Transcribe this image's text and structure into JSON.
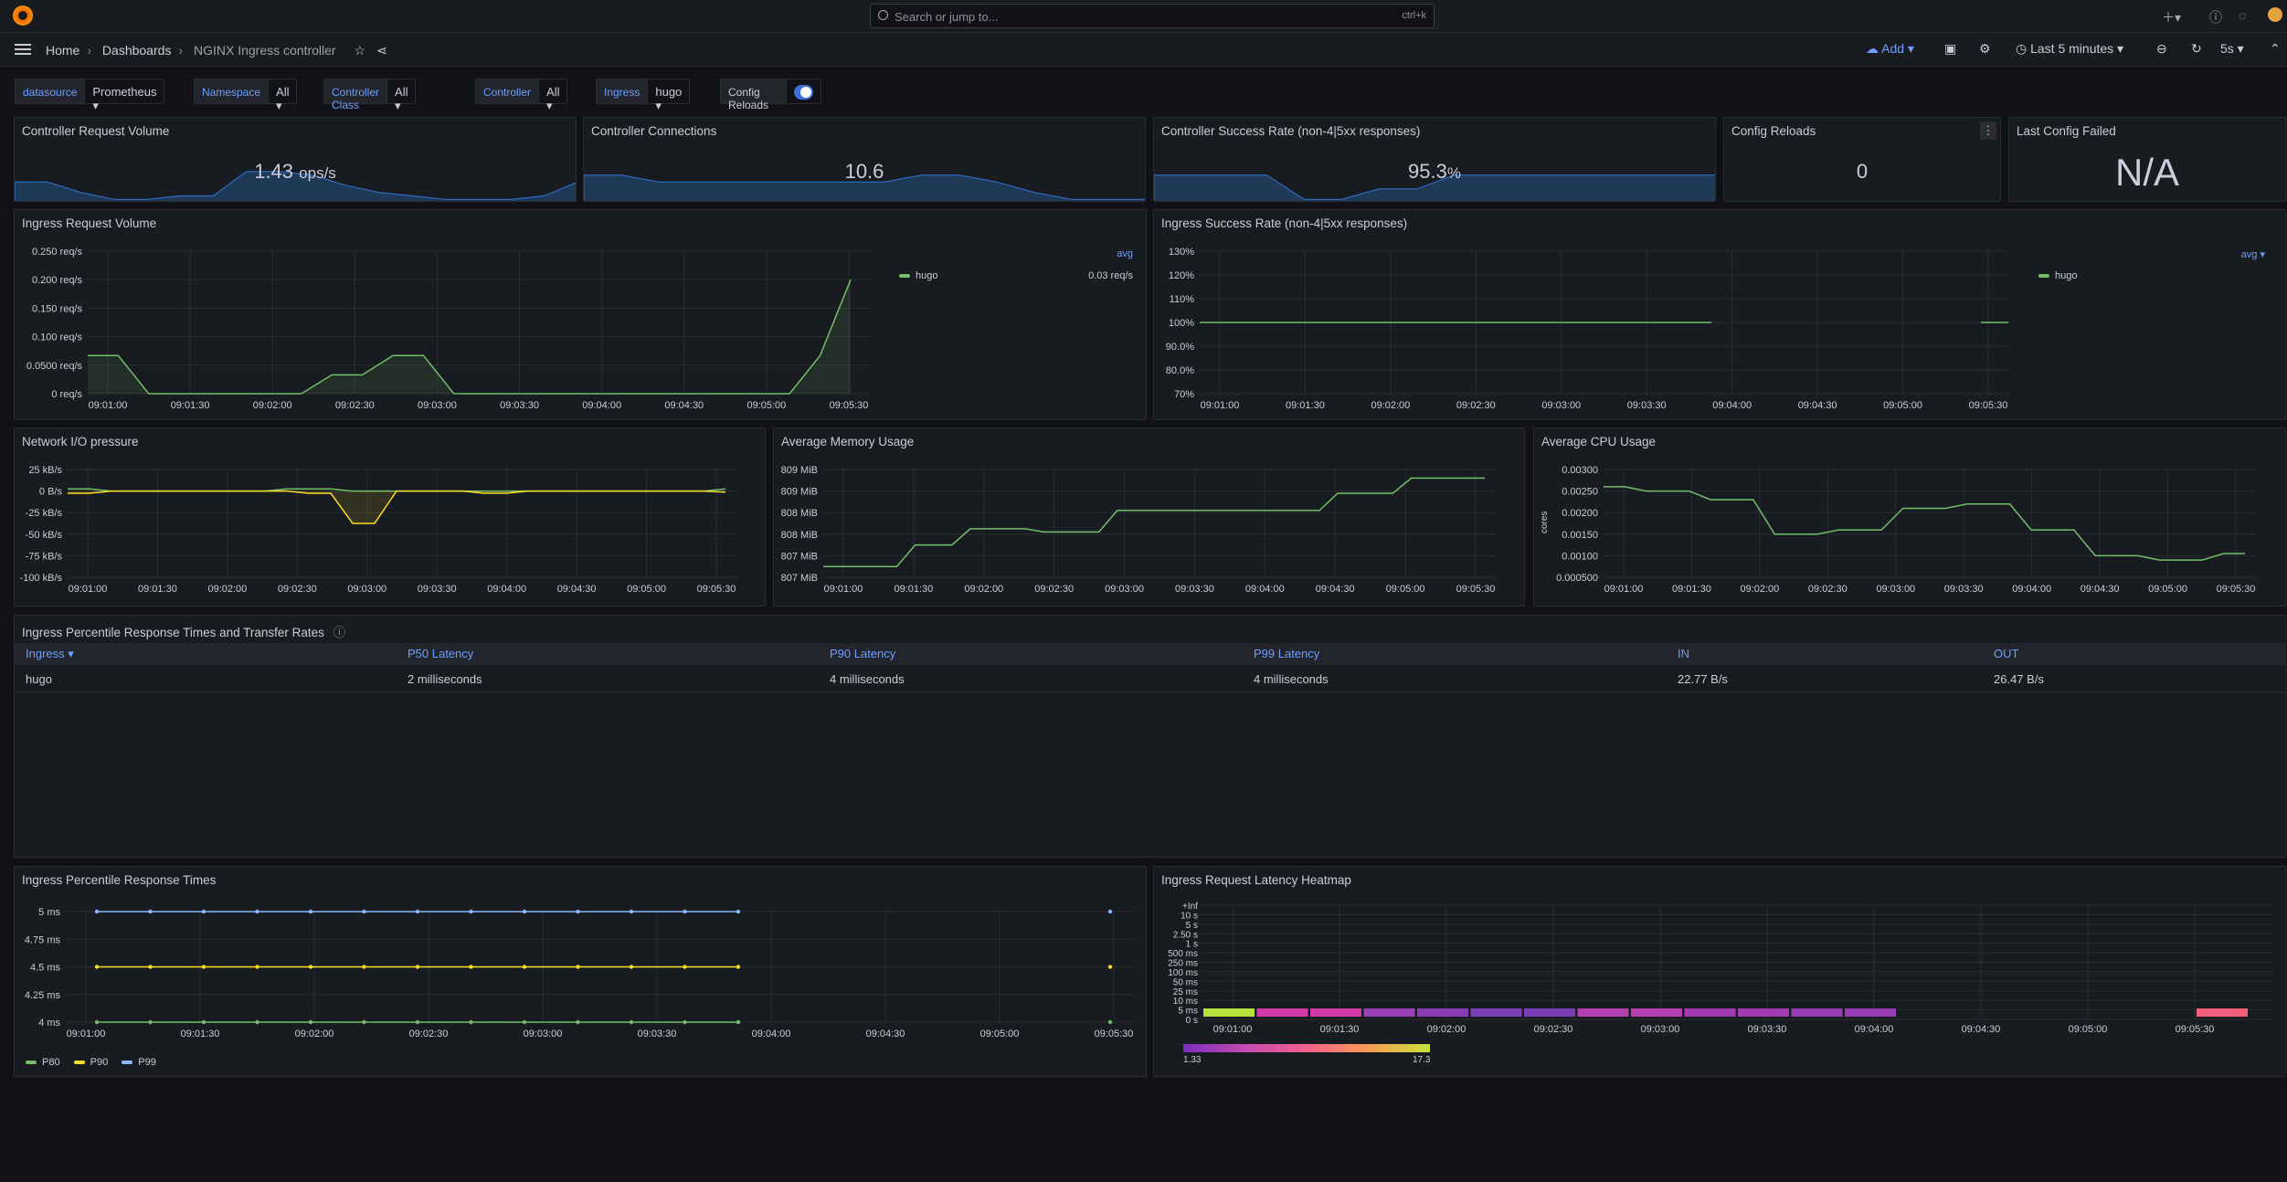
{
  "topbar": {
    "search_placeholder": "Search or jump to...",
    "search_kbd": "ctrl+k"
  },
  "breadcrumb": {
    "home": "Home",
    "dashboards": "Dashboards",
    "current": "NGINX Ingress controller"
  },
  "toolbar": {
    "add": "Add",
    "time_range": "Last 5 minutes",
    "refresh": "5s"
  },
  "vars": [
    {
      "label": "datasource",
      "value": "Prometheus"
    },
    {
      "label": "Namespace",
      "value": "All"
    },
    {
      "label": "Controller Class",
      "value": "All"
    },
    {
      "label": "Controller",
      "value": "All"
    },
    {
      "label": "Ingress",
      "value": "hugo"
    },
    {
      "label": "Config Reloads",
      "value": ""
    }
  ],
  "stats": {
    "req_volume": {
      "title": "Controller Request Volume",
      "value": "1.43",
      "unit": "ops/s",
      "spark": [
        0.6,
        0.6,
        0.3,
        0.1,
        0.1,
        0.2,
        0.2,
        0.9,
        0.9,
        0.8,
        0.5,
        0.3,
        0.2,
        0.1,
        0.1,
        0.1,
        0.2,
        0.6
      ]
    },
    "connections": {
      "title": "Controller Connections",
      "value": "10.6",
      "spark": [
        0.8,
        0.8,
        0.6,
        0.6,
        0.6,
        0.6,
        0.6,
        0.6,
        0.6,
        0.8,
        0.8,
        0.6,
        0.3,
        0.1,
        0.1,
        0.1
      ]
    },
    "success": {
      "title": "Controller Success Rate (non-4|5xx responses)",
      "value": "95.3",
      "unit": "%",
      "spark": [
        0.8,
        0.8,
        0.8,
        0.8,
        0.1,
        0.1,
        0.4,
        0.4,
        0.8,
        0.8,
        0.8,
        0.8,
        0.8,
        0.8,
        0.8,
        0.8
      ]
    },
    "config_reloads": {
      "title": "Config Reloads",
      "value": "0"
    },
    "last_config": {
      "title": "Last Config Failed",
      "value": "N/A"
    }
  },
  "ingress_volume": {
    "title": "Ingress Request Volume",
    "legend_header": "avg",
    "legend_name": "hugo",
    "legend_value": "0.03 req/s",
    "yticks": [
      "0.250 req/s",
      "0.200 req/s",
      "0.150 req/s",
      "0.100 req/s",
      "0.0500 req/s",
      "0 req/s"
    ],
    "xticks": [
      "09:01:00",
      "09:01:30",
      "09:02:00",
      "09:02:30",
      "09:03:00",
      "09:03:30",
      "09:04:00",
      "09:04:30",
      "09:05:00",
      "09:05:30"
    ]
  },
  "ingress_success": {
    "title": "Ingress Success Rate (non-4|5xx responses)",
    "legend_header": "avg",
    "legend_name": "hugo",
    "yticks": [
      "130%",
      "120%",
      "110%",
      "100%",
      "90.0%",
      "80.0%",
      "70%"
    ],
    "xticks": [
      "09:01:00",
      "09:01:30",
      "09:02:00",
      "09:02:30",
      "09:03:00",
      "09:03:30",
      "09:04:00",
      "09:04:30",
      "09:05:00",
      "09:05:30"
    ]
  },
  "network": {
    "title": "Network I/O pressure",
    "yticks": [
      "25 kB/s",
      "0 B/s",
      "-25 kB/s",
      "-50 kB/s",
      "-75 kB/s",
      "-100 kB/s"
    ],
    "xticks": [
      "09:01:00",
      "09:01:30",
      "09:02:00",
      "09:02:30",
      "09:03:00",
      "09:03:30",
      "09:04:00",
      "09:04:30",
      "09:05:00",
      "09:05:30"
    ]
  },
  "memory": {
    "title": "Average Memory Usage",
    "yticks": [
      "809 MiB",
      "809 MiB",
      "808 MiB",
      "808 MiB",
      "807 MiB",
      "807 MiB"
    ],
    "xticks": [
      "09:01:00",
      "09:01:30",
      "09:02:00",
      "09:02:30",
      "09:03:00",
      "09:03:30",
      "09:04:00",
      "09:04:30",
      "09:05:00",
      "09:05:30"
    ]
  },
  "cpu": {
    "title": "Average CPU Usage",
    "ylabel": "cores",
    "yticks": [
      "0.00300",
      "0.00250",
      "0.00200",
      "0.00150",
      "0.00100",
      "0.000500"
    ],
    "xticks": [
      "09:01:00",
      "09:01:30",
      "09:02:00",
      "09:02:30",
      "09:03:00",
      "09:03:30",
      "09:04:00",
      "09:04:30",
      "09:05:00",
      "09:05:30"
    ]
  },
  "table": {
    "title": "Ingress Percentile Response Times and Transfer Rates",
    "headers": [
      "Ingress",
      "P50 Latency",
      "P90 Latency",
      "P99 Latency",
      "IN",
      "OUT"
    ],
    "rows": [
      [
        "hugo",
        "2 milliseconds",
        "4 milliseconds",
        "4 milliseconds",
        "22.77 B/s",
        "26.47 B/s"
      ]
    ]
  },
  "percentile": {
    "title": "Ingress Percentile Response Times",
    "yticks": [
      "5 ms",
      "4.75 ms",
      "4.5 ms",
      "4.25 ms",
      "4 ms"
    ],
    "xticks": [
      "09:01:00",
      "09:01:30",
      "09:02:00",
      "09:02:30",
      "09:03:00",
      "09:03:30",
      "09:04:00",
      "09:04:30",
      "09:05:00",
      "09:05:30"
    ],
    "legend": [
      "P80",
      "P90",
      "P99"
    ]
  },
  "heatmap": {
    "title": "Ingress Request Latency Heatmap",
    "yticks": [
      "+Inf",
      "10 s",
      "5 s",
      "2.50 s",
      "1 s",
      "500 ms",
      "250 ms",
      "100 ms",
      "50 ms",
      "25 ms",
      "10 ms",
      "5 ms",
      "0 s"
    ],
    "xticks": [
      "09:01:00",
      "09:01:30",
      "09:02:00",
      "09:02:30",
      "09:03:00",
      "09:03:30",
      "09:04:00",
      "09:04:30",
      "09:05:00",
      "09:05:30"
    ],
    "scale_min": "1.33",
    "scale_max": "17.3"
  },
  "colors": {
    "green": "#73bf69",
    "yellow": "#fade2a",
    "blue": "#8ab8ff",
    "accent": "#6e9fff"
  }
}
